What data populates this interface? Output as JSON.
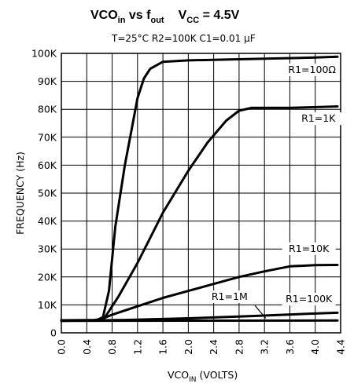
{
  "chart_data": {
    "type": "line",
    "title": {
      "vco": "VCO",
      "vco_sub": "in",
      "vs": " vs f",
      "f_sub": "out",
      "vcc": "V",
      "vcc_sub": "CC",
      "vcc_val": " = 4.5V"
    },
    "conditions": "T=25°C   R2=100K   C1=0.01 μF",
    "xlabel": {
      "main": "VCO",
      "sub": "IN",
      "rest": " (VOLTS)"
    },
    "ylabel": "FREQUENCY (Hz)",
    "xlim": [
      0,
      4.4
    ],
    "ylim": [
      0,
      100000
    ],
    "x_ticks": [
      "0.0",
      "0.4",
      "0.8",
      "1.2",
      "1.6",
      "2.0",
      "2.4",
      "2.8",
      "3.2",
      "3.6",
      "4.0",
      "4.4"
    ],
    "y_ticks": [
      "0",
      "10K",
      "20K",
      "30K",
      "40K",
      "50K",
      "60K",
      "70K",
      "80K",
      "90K",
      "100K"
    ],
    "grid": true,
    "series": [
      {
        "name": "R1=100Ω",
        "points": [
          [
            0,
            4500
          ],
          [
            0.5,
            4500
          ],
          [
            0.65,
            5000
          ],
          [
            0.75,
            15000
          ],
          [
            0.85,
            38000
          ],
          [
            1.0,
            60000
          ],
          [
            1.1,
            72000
          ],
          [
            1.2,
            84000
          ],
          [
            1.3,
            91000
          ],
          [
            1.4,
            94500
          ],
          [
            1.6,
            97000
          ],
          [
            2.0,
            97500
          ],
          [
            3.0,
            98000
          ],
          [
            4.0,
            98500
          ],
          [
            4.35,
            98800
          ]
        ]
      },
      {
        "name": "R1=1K",
        "points": [
          [
            0,
            4500
          ],
          [
            0.55,
            4500
          ],
          [
            0.7,
            6000
          ],
          [
            0.9,
            13000
          ],
          [
            1.2,
            25000
          ],
          [
            1.6,
            43000
          ],
          [
            2.0,
            58000
          ],
          [
            2.3,
            68000
          ],
          [
            2.6,
            76000
          ],
          [
            2.8,
            79500
          ],
          [
            3.0,
            80500
          ],
          [
            3.6,
            80500
          ],
          [
            4.35,
            81000
          ]
        ]
      },
      {
        "name": "R1=10K",
        "points": [
          [
            0,
            4500
          ],
          [
            0.6,
            4600
          ],
          [
            0.8,
            6500
          ],
          [
            1.2,
            9500
          ],
          [
            1.6,
            12500
          ],
          [
            2.0,
            15000
          ],
          [
            2.4,
            17500
          ],
          [
            2.8,
            20000
          ],
          [
            3.2,
            22000
          ],
          [
            3.6,
            23800
          ],
          [
            4.0,
            24200
          ],
          [
            4.35,
            24300
          ]
        ]
      },
      {
        "name": "R1=100K",
        "points": [
          [
            0,
            4300
          ],
          [
            1.0,
            4600
          ],
          [
            2.0,
            5200
          ],
          [
            3.0,
            6000
          ],
          [
            4.0,
            6900
          ],
          [
            4.35,
            7200
          ]
        ]
      },
      {
        "name": "R1=1M",
        "points": [
          [
            0,
            4300
          ],
          [
            2.0,
            4350
          ],
          [
            4.35,
            4400
          ]
        ]
      }
    ],
    "labels": [
      "R1=100Ω",
      "R1=1K",
      "R1=10K",
      "R1=1M",
      "R1=100K"
    ]
  }
}
